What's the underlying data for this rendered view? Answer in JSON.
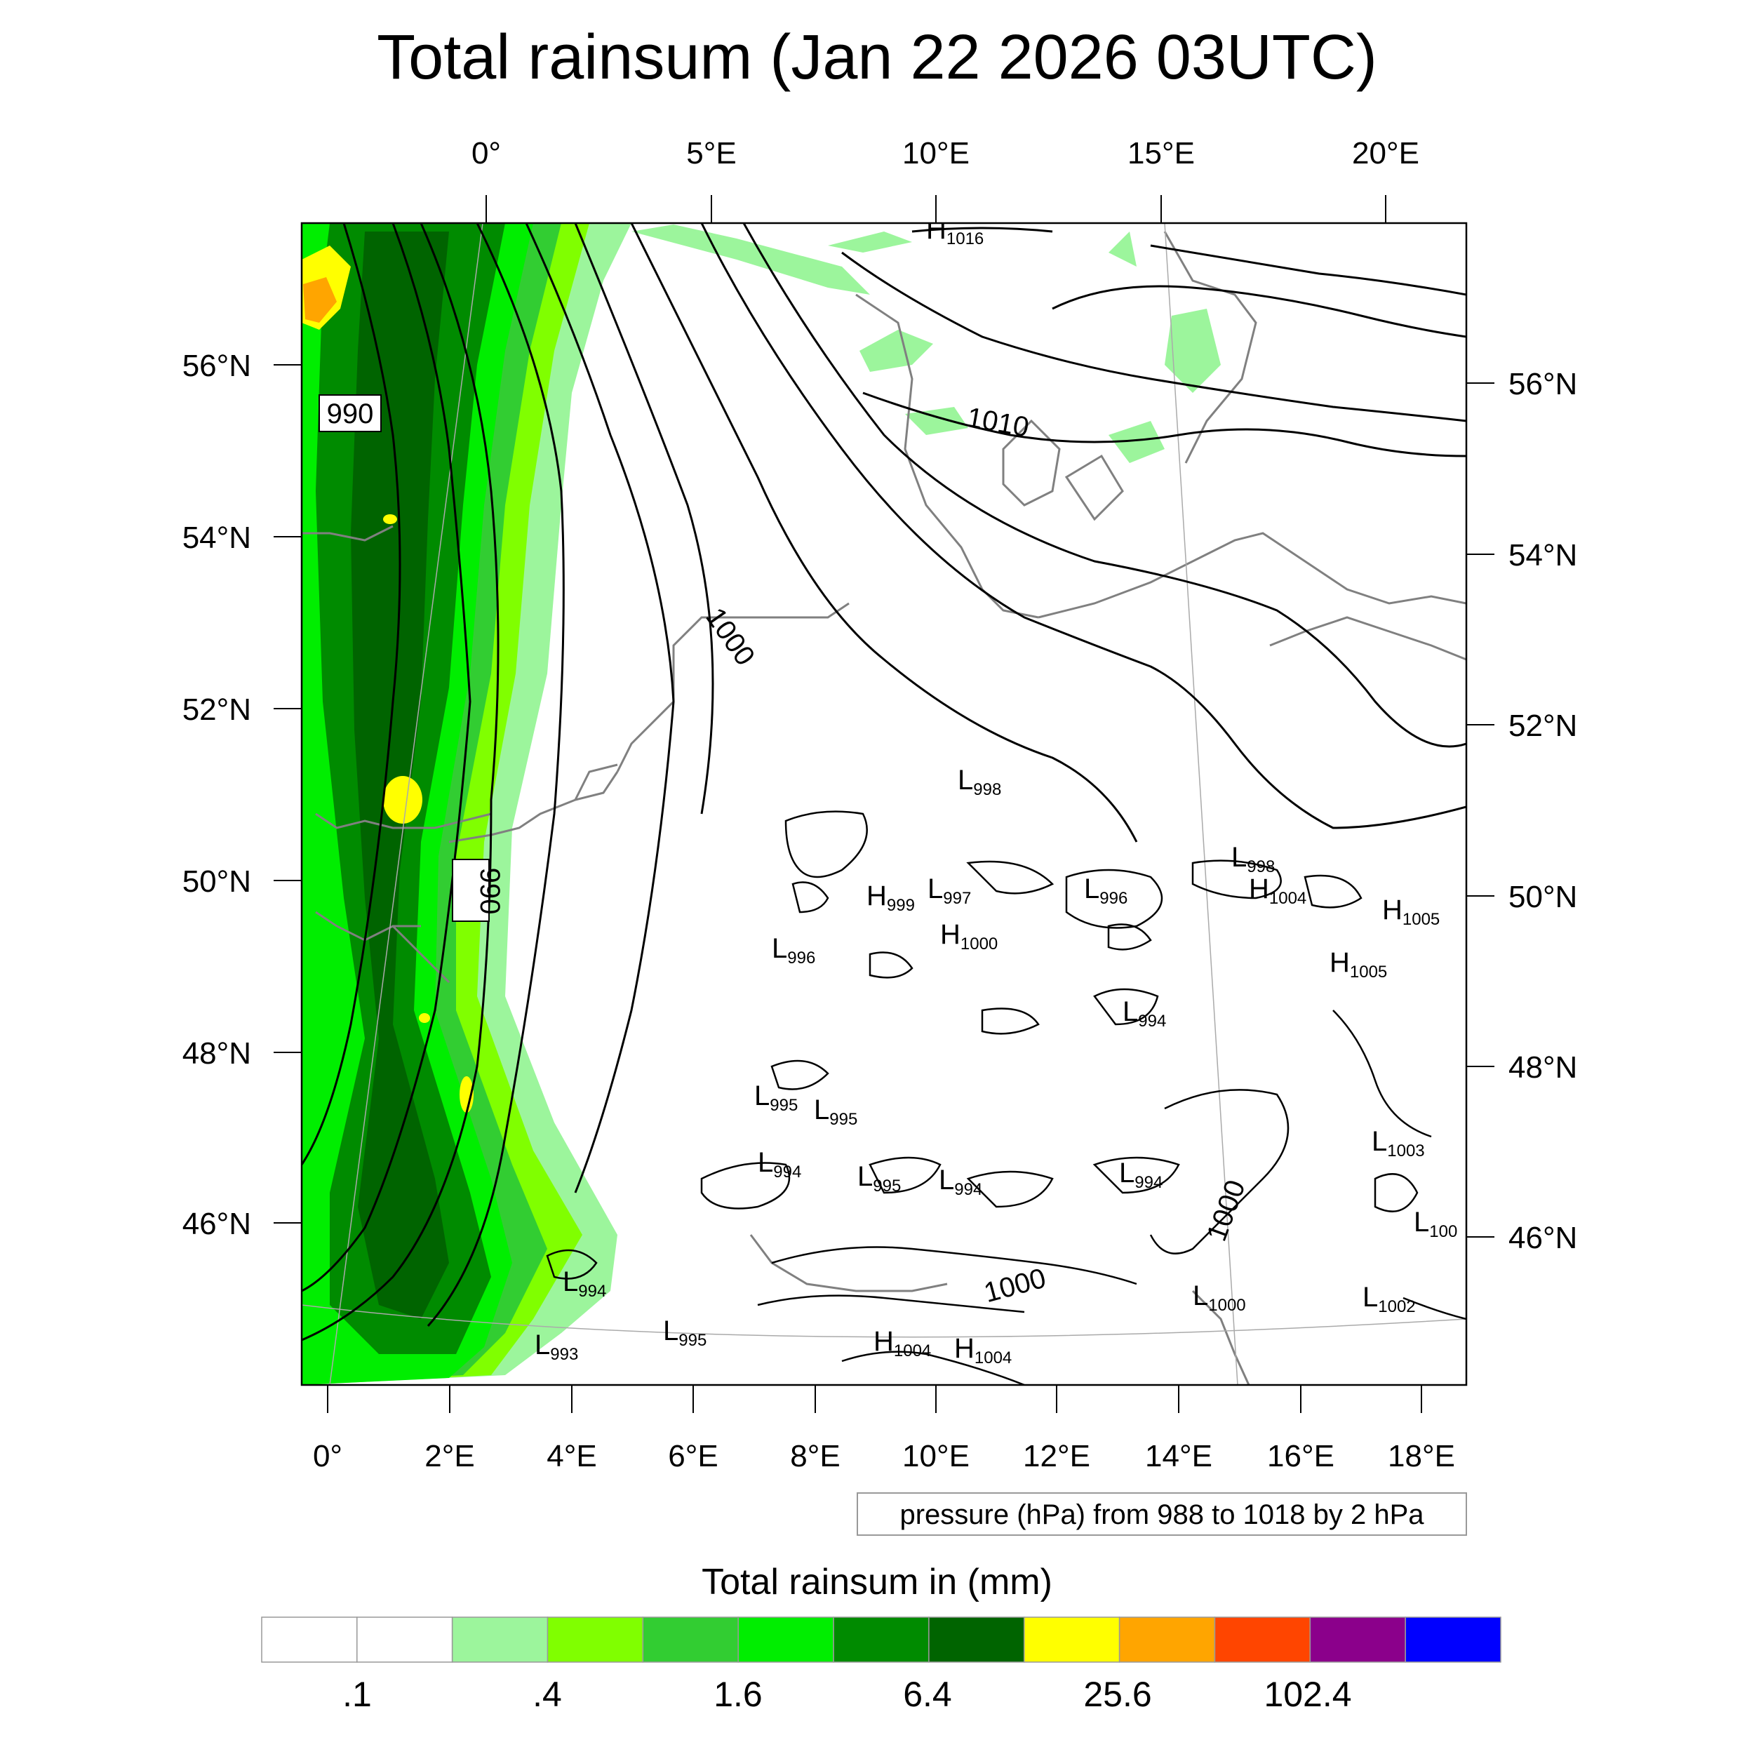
{
  "title": "Total rainsum (Jan 22 2026 03UTC)",
  "top_lon_labels": [
    "0°",
    "5°E",
    "10°E",
    "15°E",
    "20°E"
  ],
  "bottom_lon_labels": [
    "0°",
    "2°E",
    "4°E",
    "6°E",
    "8°E",
    "10°E",
    "12°E",
    "14°E",
    "16°E",
    "18°E"
  ],
  "left_lat_labels": [
    "56°N",
    "54°N",
    "52°N",
    "50°N",
    "48°N",
    "46°N"
  ],
  "right_lat_labels": [
    "56°N",
    "54°N",
    "52°N",
    "50°N",
    "48°N",
    "46°N"
  ],
  "contour_info": "pressure (hPa) from 988 to 1018 by 2 hPa",
  "colorbar": {
    "title": "Total rainsum in (mm)",
    "tick_labels": [
      ".1",
      ".4",
      "1.6",
      "6.4",
      "25.6",
      "102.4"
    ],
    "colors": [
      "#ffffff",
      "#ffffff",
      "#9cf59c",
      "#80ff00",
      "#32cd32",
      "#00ee00",
      "#008b00",
      "#006400",
      "#ffff00",
      "#ffa500",
      "#ff4500",
      "#8b008b",
      "#0000ff"
    ]
  },
  "isobar_labels": [
    "990",
    "990",
    "1010",
    "1000",
    "1000",
    "1000"
  ],
  "pressure_centers": [
    {
      "type": "H",
      "value": "1016"
    },
    {
      "type": "L",
      "value": "998"
    },
    {
      "type": "L",
      "value": "998"
    },
    {
      "type": "H",
      "value": "999"
    },
    {
      "type": "L",
      "value": "997"
    },
    {
      "type": "L",
      "value": "996"
    },
    {
      "type": "H",
      "value": "1004"
    },
    {
      "type": "H",
      "value": "1005"
    },
    {
      "type": "H",
      "value": "1000"
    },
    {
      "type": "L",
      "value": "996"
    },
    {
      "type": "H",
      "value": "1005"
    },
    {
      "type": "L",
      "value": "994"
    },
    {
      "type": "L",
      "value": "995"
    },
    {
      "type": "L",
      "value": "995"
    },
    {
      "type": "L",
      "value": "1003"
    },
    {
      "type": "L",
      "value": "994"
    },
    {
      "type": "L",
      "value": "995"
    },
    {
      "type": "L",
      "value": "994"
    },
    {
      "type": "L",
      "value": "994"
    },
    {
      "type": "L",
      "value": "100"
    },
    {
      "type": "L",
      "value": "994"
    },
    {
      "type": "L",
      "value": "1000"
    },
    {
      "type": "L",
      "value": "1002"
    },
    {
      "type": "L",
      "value": "993"
    },
    {
      "type": "L",
      "value": "995"
    },
    {
      "type": "H",
      "value": "1004"
    },
    {
      "type": "H",
      "value": "1004"
    }
  ]
}
